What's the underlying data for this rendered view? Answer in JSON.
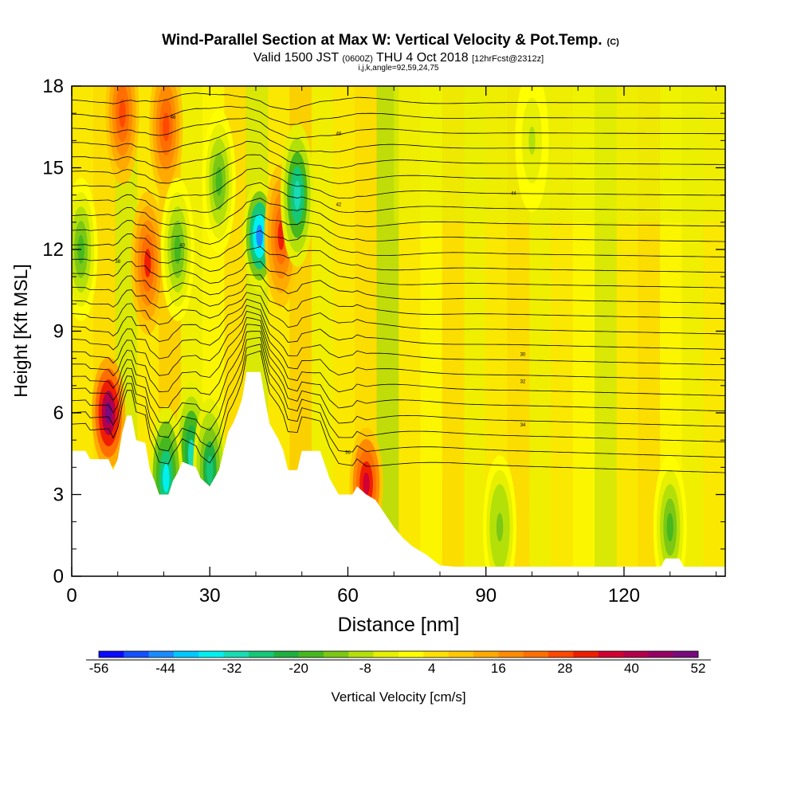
{
  "header": {
    "title": "Wind-Parallel Section at Max W: Vertical Velocity & Pot.Temp.",
    "title_mark": "(C)",
    "subtitle_valid": "Valid 1500 JST",
    "subtitle_utc": "(0600Z)",
    "subtitle_date": "THU 4 Oct 2018",
    "subtitle_fcst": "[12hrFcst@2312z]",
    "subtitle_params": "i,j,k,angle=92,59,24,75"
  },
  "colorbar": {
    "label": "Vertical Velocity [cm/s]",
    "tick_labels": [
      "-56",
      "-44",
      "-32",
      "-20",
      "-8",
      "4",
      "16",
      "28",
      "40",
      "52"
    ],
    "colors": [
      "#0a0aff",
      "#1450ff",
      "#1a8cff",
      "#00c8ff",
      "#00f0f0",
      "#18dcb4",
      "#14c878",
      "#20b040",
      "#46b81e",
      "#7cc814",
      "#b4e00a",
      "#e6f000",
      "#ffff00",
      "#ffe100",
      "#ffc800",
      "#ffaa00",
      "#ff8c00",
      "#ff6e00",
      "#ff4800",
      "#f01e00",
      "#d20032",
      "#b4004b",
      "#960064",
      "#780a7d"
    ]
  },
  "chart_data": {
    "type": "heatmap",
    "title": "Wind-Parallel Section at Max W: Vertical Velocity & Pot.Temp.",
    "xlabel": "Distance [nm]",
    "ylabel": "Height [Kft MSL]",
    "xlim": [
      0,
      142
    ],
    "ylim": [
      0,
      18
    ],
    "x_ticks": [
      "0",
      "30",
      "60",
      "90",
      "120"
    ],
    "y_ticks": [
      "0",
      "3",
      "6",
      "9",
      "12",
      "15",
      "18"
    ],
    "x_tick_values": [
      0,
      30,
      60,
      90,
      120
    ],
    "y_tick_values": [
      0,
      3,
      6,
      9,
      12,
      15,
      18
    ],
    "colorbar_range": [
      -56,
      52
    ],
    "terrain": [
      [
        0,
        4.6
      ],
      [
        3,
        4.6
      ],
      [
        4,
        4.3
      ],
      [
        8,
        4.3
      ],
      [
        9,
        3.9
      ],
      [
        10,
        4.3
      ],
      [
        11,
        5.3
      ],
      [
        12,
        5.9
      ],
      [
        13,
        5.9
      ],
      [
        14,
        5.0
      ],
      [
        16,
        4.9
      ],
      [
        17,
        3.9
      ],
      [
        18,
        3.5
      ],
      [
        19,
        3.0
      ],
      [
        21,
        3.0
      ],
      [
        22,
        3.5
      ],
      [
        23,
        3.8
      ],
      [
        24,
        4.2
      ],
      [
        27,
        4.0
      ],
      [
        28,
        3.6
      ],
      [
        30,
        3.3
      ],
      [
        31,
        3.6
      ],
      [
        32,
        3.9
      ],
      [
        33,
        4.6
      ],
      [
        34,
        5.3
      ],
      [
        35,
        5.6
      ],
      [
        36,
        6.0
      ],
      [
        37,
        6.5
      ],
      [
        38,
        7.5
      ],
      [
        41,
        7.5
      ],
      [
        42,
        6.5
      ],
      [
        43,
        5.6
      ],
      [
        44,
        5.3
      ],
      [
        45,
        5.0
      ],
      [
        46,
        4.6
      ],
      [
        47,
        3.9
      ],
      [
        49,
        3.9
      ],
      [
        50,
        4.6
      ],
      [
        54,
        4.6
      ],
      [
        56,
        3.6
      ],
      [
        58,
        3.0
      ],
      [
        61,
        3.0
      ],
      [
        62,
        3.3
      ],
      [
        64,
        3.0
      ],
      [
        66,
        2.8
      ],
      [
        68,
        2.3
      ],
      [
        70,
        1.8
      ],
      [
        72,
        1.4
      ],
      [
        74,
        1.1
      ],
      [
        77,
        0.8
      ],
      [
        80,
        0.4
      ],
      [
        83,
        0.35
      ],
      [
        86,
        0.35
      ],
      [
        128,
        0.35
      ],
      [
        129,
        0.65
      ],
      [
        132,
        0.65
      ],
      [
        133,
        0.35
      ],
      [
        142,
        0.35
      ]
    ],
    "w_features": [
      {
        "x": 8,
        "z": 6.0,
        "w": 52
      },
      {
        "x": 64,
        "z": 3.4,
        "w": 36
      },
      {
        "x": 40.8,
        "z": 12.5,
        "w": -44
      },
      {
        "x": 45.5,
        "z": 12.5,
        "w": 30
      },
      {
        "x": 49,
        "z": 14.0,
        "w": -32
      },
      {
        "x": 16.5,
        "z": 11.5,
        "w": 30
      },
      {
        "x": 20.5,
        "z": 16.5,
        "w": 28
      },
      {
        "x": 11,
        "z": 17.0,
        "w": 26
      },
      {
        "x": 26,
        "z": 4.5,
        "w": -30
      },
      {
        "x": 20.5,
        "z": 3.6,
        "w": -34
      },
      {
        "x": 30,
        "z": 3.9,
        "w": -28
      },
      {
        "x": 32,
        "z": 14.5,
        "w": -16
      },
      {
        "x": 23,
        "z": 12.0,
        "w": -18
      },
      {
        "x": 2,
        "z": 12.0,
        "w": -16
      },
      {
        "x": 93,
        "z": 1.8,
        "w": -14
      },
      {
        "x": 130,
        "z": 1.8,
        "w": -16
      },
      {
        "x": 100,
        "z": 16.0,
        "w": -8
      }
    ],
    "theta_contours": {
      "line_color": "#000000",
      "labels": [
        "38",
        "40",
        "42",
        "44",
        "46",
        "48",
        "30",
        "32",
        "34",
        "36"
      ]
    }
  }
}
